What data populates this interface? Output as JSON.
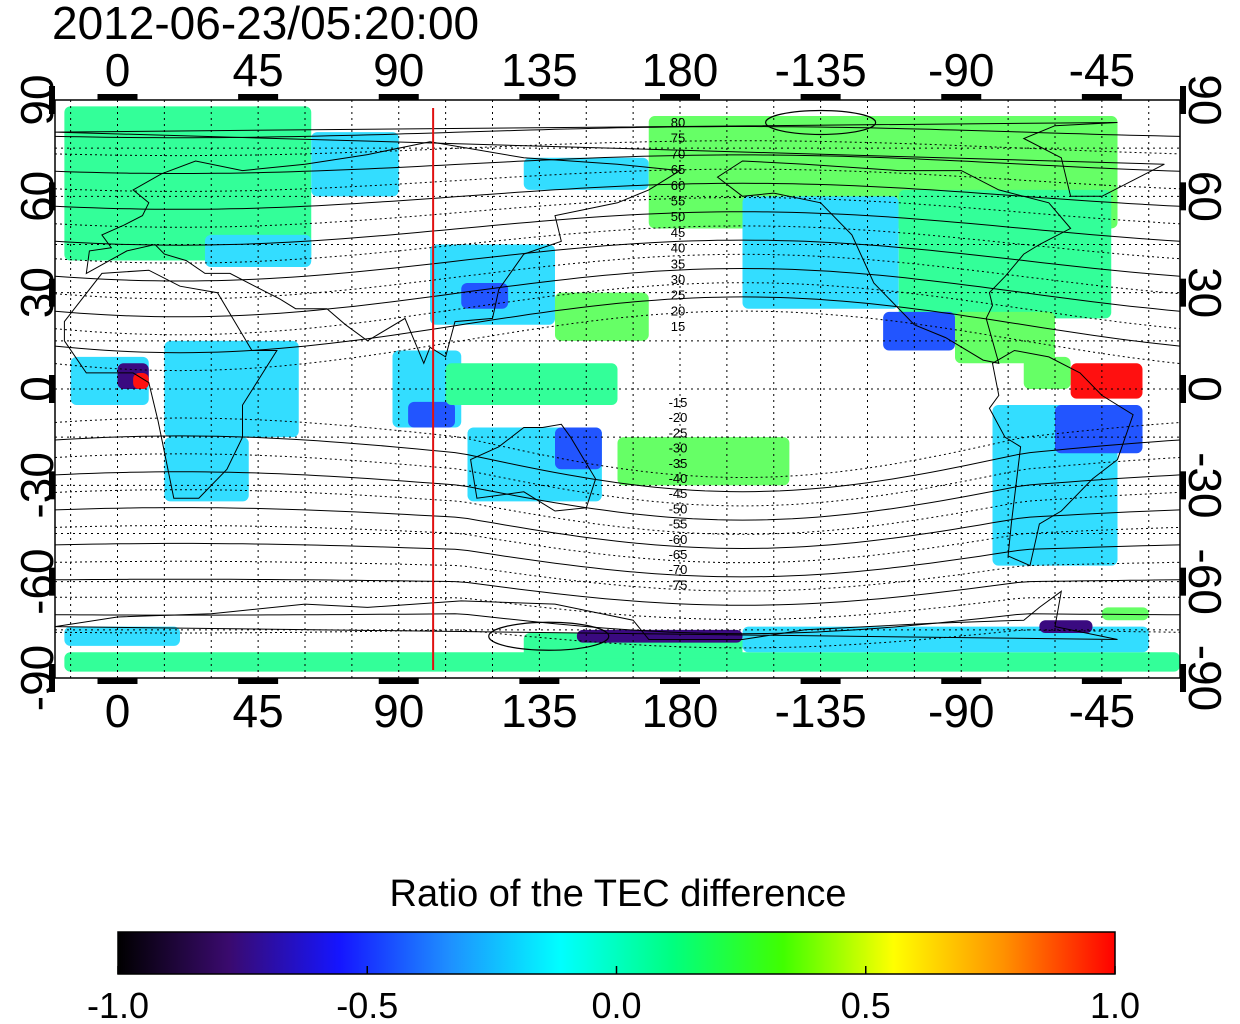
{
  "title": "2012-06-23/05:20:00",
  "axes": {
    "x_ticks_top": [
      "0",
      "45",
      "90",
      "135",
      "180",
      "-135",
      "-90",
      "-45"
    ],
    "x_ticks_bottom": [
      "0",
      "45",
      "90",
      "135",
      "180",
      "-135",
      "-90",
      "-45"
    ],
    "x_tick_values": [
      0,
      45,
      90,
      135,
      180,
      225,
      270,
      315
    ],
    "y_ticks_left": [
      "90",
      "60",
      "30",
      "0",
      "-30",
      "-60",
      "-90"
    ],
    "y_ticks_right": [
      "90",
      "60",
      "30",
      "0",
      "-30",
      "-60",
      "-90"
    ],
    "y_tick_values": [
      90,
      60,
      30,
      0,
      -30,
      -60,
      -90
    ],
    "lon_range": [
      -20,
      340
    ],
    "lat_range": [
      -90,
      90
    ],
    "grid": "dotted, every 15 degrees"
  },
  "meridian_marker": {
    "longitude": 101,
    "color": "#e01010"
  },
  "contour_labels": {
    "north": [
      "80",
      "75",
      "70",
      "65",
      "60",
      "55",
      "50",
      "45",
      "40",
      "35",
      "30",
      "25",
      "20",
      "15"
    ],
    "south": [
      "-15",
      "-20",
      "-25",
      "-30",
      "-35",
      "-40",
      "-45",
      "-50",
      "-55",
      "-60",
      "-65",
      "-70",
      "-75"
    ]
  },
  "colorbar": {
    "title": "Ratio of the TEC difference",
    "range": [
      -1.0,
      1.0
    ],
    "tick_labels": [
      "-1.0",
      "-0.5",
      "0.0",
      "0.5",
      "1.0"
    ],
    "colors": [
      "#000000",
      "#3a0a6e",
      "#1515ff",
      "#1e90ff",
      "#00ffff",
      "#00ff80",
      "#40ff00",
      "#ffff00",
      "#ff9000",
      "#ff0000"
    ]
  },
  "data_colors": {
    "neutral": "#33ff99",
    "slightly_negative": "#33ddff",
    "negative": "#2255ff",
    "strong_negative": "#3a0a80",
    "positive": "#ff1010",
    "near_zero": "#66ff66"
  }
}
